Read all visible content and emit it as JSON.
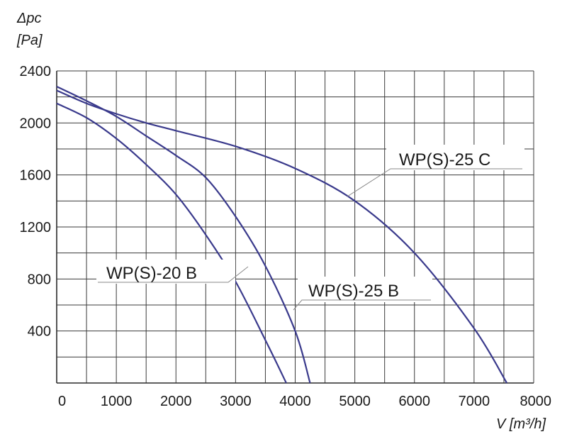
{
  "chart_data": {
    "type": "line",
    "ylabel_symbol": "Δpc",
    "ylabel_unit": "[Pa]",
    "xlabel": "V [m³/h]",
    "xlim": [
      0,
      8000
    ],
    "ylim": [
      0,
      2400
    ],
    "x_ticks": [
      0,
      1000,
      2000,
      3000,
      4000,
      5000,
      6000,
      7000,
      8000
    ],
    "y_ticks": [
      400,
      800,
      1200,
      1600,
      2000,
      2400
    ],
    "grid": true,
    "line_color": "#3a3a8c",
    "series": [
      {
        "name": "WP(S)-20 B",
        "x": [
          0,
          500,
          1000,
          1500,
          2000,
          2500,
          3000,
          3500,
          3850
        ],
        "y": [
          2150,
          2040,
          1880,
          1680,
          1450,
          1140,
          780,
          330,
          0
        ]
      },
      {
        "name": "WP(S)-25 B",
        "x": [
          0,
          500,
          1000,
          1500,
          2000,
          2500,
          3000,
          3500,
          4000,
          4250
        ],
        "y": [
          2280,
          2170,
          2050,
          1900,
          1750,
          1580,
          1280,
          900,
          400,
          0
        ]
      },
      {
        "name": "WP(S)-25 C",
        "x": [
          0,
          500,
          1000,
          1500,
          2000,
          3000,
          4000,
          5000,
          6000,
          7000,
          7550
        ],
        "y": [
          2250,
          2150,
          2070,
          2000,
          1940,
          1820,
          1650,
          1400,
          1000,
          420,
          0
        ]
      }
    ]
  }
}
